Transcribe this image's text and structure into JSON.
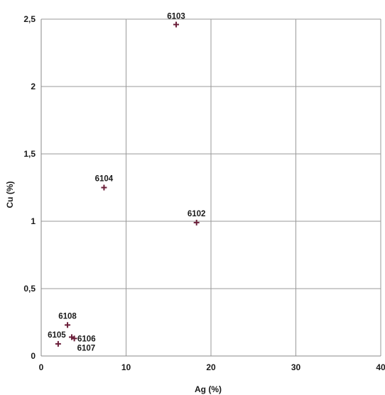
{
  "chart_data": {
    "type": "scatter",
    "xlabel": "Ag (%)",
    "ylabel": "Cu (%)",
    "xlim": [
      0,
      40
    ],
    "ylim": [
      0,
      2.5
    ],
    "x_ticks": [
      0,
      10,
      20,
      30,
      40
    ],
    "x_tick_labels": [
      "0",
      "10",
      "20",
      "30",
      "40"
    ],
    "y_ticks": [
      0,
      0.5,
      1,
      1.5,
      2,
      2.5
    ],
    "y_tick_labels": [
      "0",
      "0,5",
      "1",
      "1,5",
      "2",
      "2,5"
    ],
    "grid": true,
    "legend": "none",
    "marker": "plus",
    "marker_color": "#6b1f3a",
    "points": [
      {
        "label": "6103",
        "x": 15.9,
        "y": 2.46
      },
      {
        "label": "6104",
        "x": 7.4,
        "y": 1.25
      },
      {
        "label": "6102",
        "x": 18.3,
        "y": 0.99
      },
      {
        "label": "6108",
        "x": 3.1,
        "y": 0.23
      },
      {
        "label": "6106",
        "x": 3.6,
        "y": 0.14
      },
      {
        "label": "6107",
        "x": 3.9,
        "y": 0.13
      },
      {
        "label": "6105",
        "x": 2.0,
        "y": 0.09
      }
    ]
  }
}
